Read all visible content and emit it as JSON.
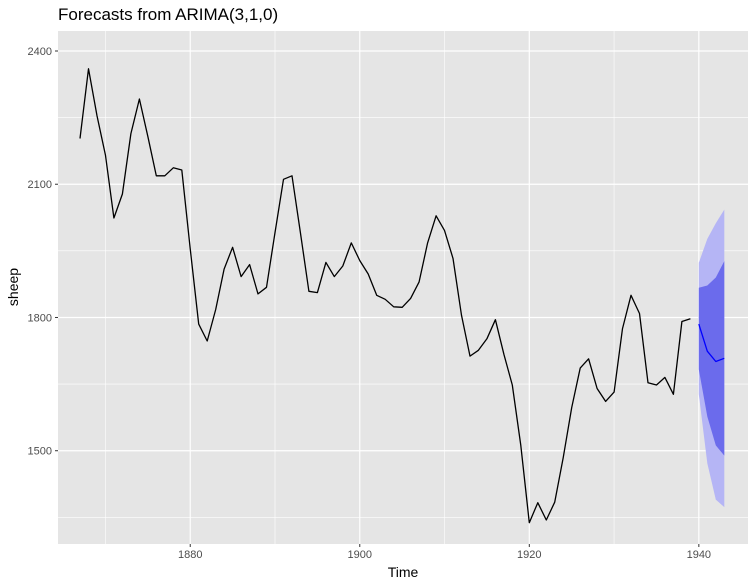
{
  "chart_data": {
    "type": "line",
    "title": "Forecasts from ARIMA(3,1,0)",
    "xlabel": "Time",
    "ylabel": "sheep",
    "xlim": [
      1864.4,
      1945.8
    ],
    "ylim": [
      1290,
      2445
    ],
    "x_ticks": [
      1880,
      1900,
      1920,
      1940
    ],
    "y_ticks": [
      1500,
      1800,
      2100,
      2400
    ],
    "x_minor_ticks": [
      1870,
      1890,
      1910,
      1930
    ],
    "y_minor_ticks": [
      1350,
      1650,
      1950,
      2250
    ],
    "grid": true,
    "legend": "none",
    "colors": {
      "panel_background": "#e5e5e5",
      "grid": "#ffffff",
      "history_line": "#000000",
      "forecast_line": "#0000ff",
      "interval_80": "#6b6bec",
      "interval_95": "#b5b5f5"
    },
    "series": [
      {
        "x": [
          1867,
          1868,
          1869,
          1870,
          1871,
          1872,
          1873,
          1874,
          1875,
          1876,
          1877,
          1878,
          1879,
          1880,
          1881,
          1882,
          1883,
          1884,
          1885,
          1886,
          1887,
          1888,
          1889,
          1890,
          1891,
          1892,
          1893,
          1894,
          1895,
          1896,
          1897,
          1898,
          1899,
          1900,
          1901,
          1902,
          1903,
          1904,
          1905,
          1906,
          1907,
          1908,
          1909,
          1910,
          1911,
          1912,
          1913,
          1914,
          1915,
          1916,
          1917,
          1918,
          1919,
          1920,
          1921,
          1922,
          1923,
          1924,
          1925,
          1926,
          1927,
          1928,
          1929,
          1930,
          1931,
          1932,
          1933,
          1934,
          1935,
          1936,
          1937,
          1938,
          1939
        ],
        "values": [
          2203,
          2360,
          2254,
          2165,
          2024,
          2078,
          2214,
          2292,
          2207,
          2119,
          2119,
          2137,
          2132,
          1955,
          1785,
          1747,
          1818,
          1909,
          1958,
          1892,
          1919,
          1853,
          1868,
          1991,
          2111,
          2119,
          1991,
          1859,
          1856,
          1924,
          1892,
          1916,
          1968,
          1928,
          1898,
          1850,
          1841,
          1824,
          1823,
          1843,
          1880,
          1968,
          2029,
          1996,
          1933,
          1805,
          1713,
          1726,
          1752,
          1795,
          1717,
          1648,
          1512,
          1338,
          1383,
          1344,
          1384,
          1484,
          1597,
          1686,
          1707,
          1640,
          1611,
          1632,
          1775,
          1850,
          1809,
          1653,
          1648,
          1665,
          1627,
          1791,
          1797
        ]
      },
      {
        "x": [
          1940,
          1941,
          1942,
          1943
        ],
        "values": [
          1785,
          1724,
          1701,
          1708
        ],
        "interval_80": {
          "lower": [
            1683,
            1577,
            1512,
            1489
          ],
          "upper": [
            1867,
            1872,
            1890,
            1927
          ]
        },
        "interval_95": {
          "lower": [
            1627,
            1472,
            1390,
            1373
          ],
          "upper": [
            1923,
            1977,
            2012,
            2043
          ]
        }
      }
    ]
  }
}
